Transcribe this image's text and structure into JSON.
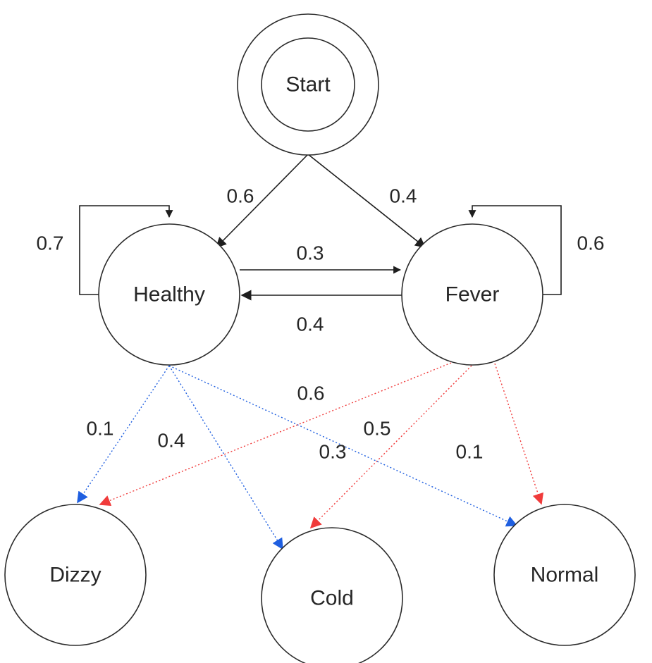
{
  "colors": {
    "node_stroke": "#2b2b2b",
    "transition": "#1e1e1e",
    "healthy_emission": "#1f5fe0",
    "healthy_emission_label": "#3a8fd8",
    "fever_emission": "#f03b3b",
    "fever_emission_label": "#f03b3b"
  },
  "nodes": {
    "start": "Start",
    "healthy": "Healthy",
    "fever": "Fever",
    "dizzy": "Dizzy",
    "cold": "Cold",
    "normal": "Normal"
  },
  "transitions": {
    "start_to_healthy": "0.6",
    "start_to_fever": "0.4",
    "healthy_to_healthy": "0.7",
    "fever_to_fever": "0.6",
    "healthy_to_fever": "0.3",
    "fever_to_healthy": "0.4"
  },
  "emissions": {
    "healthy_dizzy": "0.1",
    "healthy_cold": "0.4",
    "healthy_normal": "0.5",
    "fever_dizzy": "0.6",
    "fever_cold": "0.3",
    "fever_normal": "0.1"
  }
}
